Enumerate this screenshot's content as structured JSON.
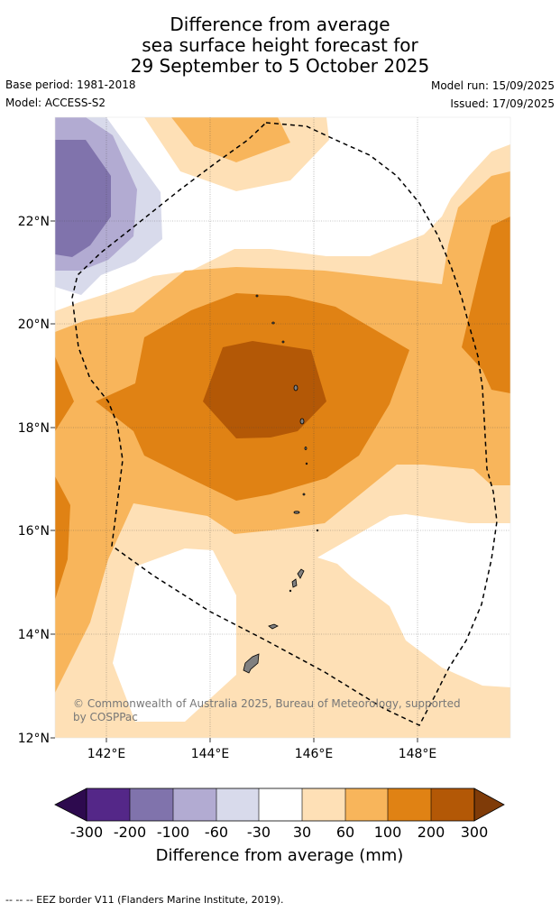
{
  "title": {
    "line1": "Difference from average",
    "line2": "sea surface height forecast for",
    "line3": "29 September to 5 October 2025"
  },
  "meta": {
    "base_period": "Base period: 1981-2018",
    "model": "Model: ACCESS-S2",
    "model_run": "Model run: 15/09/2025",
    "issued": "Issued: 17/09/2025"
  },
  "map": {
    "lon_labels": [
      "142°E",
      "144°E",
      "146°E",
      "148°E"
    ],
    "lat_labels": [
      "22°N",
      "20°N",
      "18°N",
      "16°N",
      "14°N",
      "12°N"
    ],
    "copyright_line1": "© Commonwealth of Australia 2025, Bureau of Meteorology, supported",
    "copyright_line2": "by COSPPac"
  },
  "legend": {
    "ticks": [
      "-300",
      "-200",
      "-100",
      "-60",
      "-30",
      "30",
      "60",
      "100",
      "200",
      "300"
    ],
    "label": "Difference from average (mm)",
    "colors": [
      "#2d0a4e",
      "#542788",
      "#8073ac",
      "#b2abd2",
      "#d8daeb",
      "#ffffff",
      "#fee0b6",
      "#f8b55b",
      "#e08214",
      "#b35806",
      "#7f3b08"
    ]
  },
  "footer": {
    "eez_note": "--  --  -- EEZ border V11 (Flanders Marine Institute, 2019)."
  }
}
